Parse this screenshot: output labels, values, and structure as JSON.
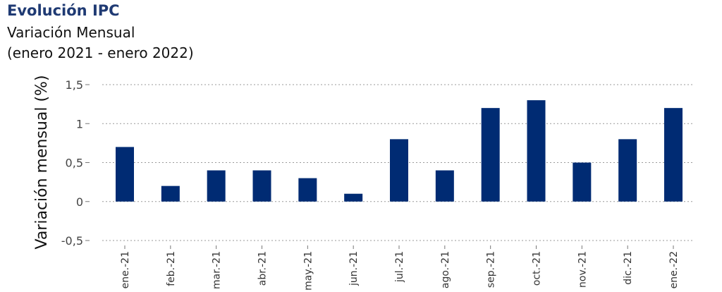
{
  "chart_data": {
    "type": "bar",
    "title": "Evolución IPC",
    "subtitle": "Variación Mensual",
    "range_note": "(enero 2021 - enero 2022)",
    "ylabel": "Variación mensual (%)",
    "xlabel": "",
    "categories": [
      "ene.-21",
      "feb.-21",
      "mar.-21",
      "abr.-21",
      "may.-21",
      "jun.-21",
      "jul.-21",
      "ago.-21",
      "sep.-21",
      "oct.-21",
      "nov.-21",
      "dic.-21",
      "ene.-22"
    ],
    "values": [
      0.7,
      0.2,
      0.4,
      0.4,
      0.3,
      0.1,
      0.8,
      0.4,
      1.2,
      1.3,
      0.5,
      0.8,
      1.2
    ],
    "ylim": [
      -0.5,
      1.5
    ],
    "yticks": [
      -0.5,
      0,
      0.5,
      1,
      1.5
    ],
    "ytick_labels": [
      "-0,5",
      "0",
      "0,5",
      "1",
      "1,5"
    ],
    "grid": true,
    "bar_color": "#002b73"
  }
}
